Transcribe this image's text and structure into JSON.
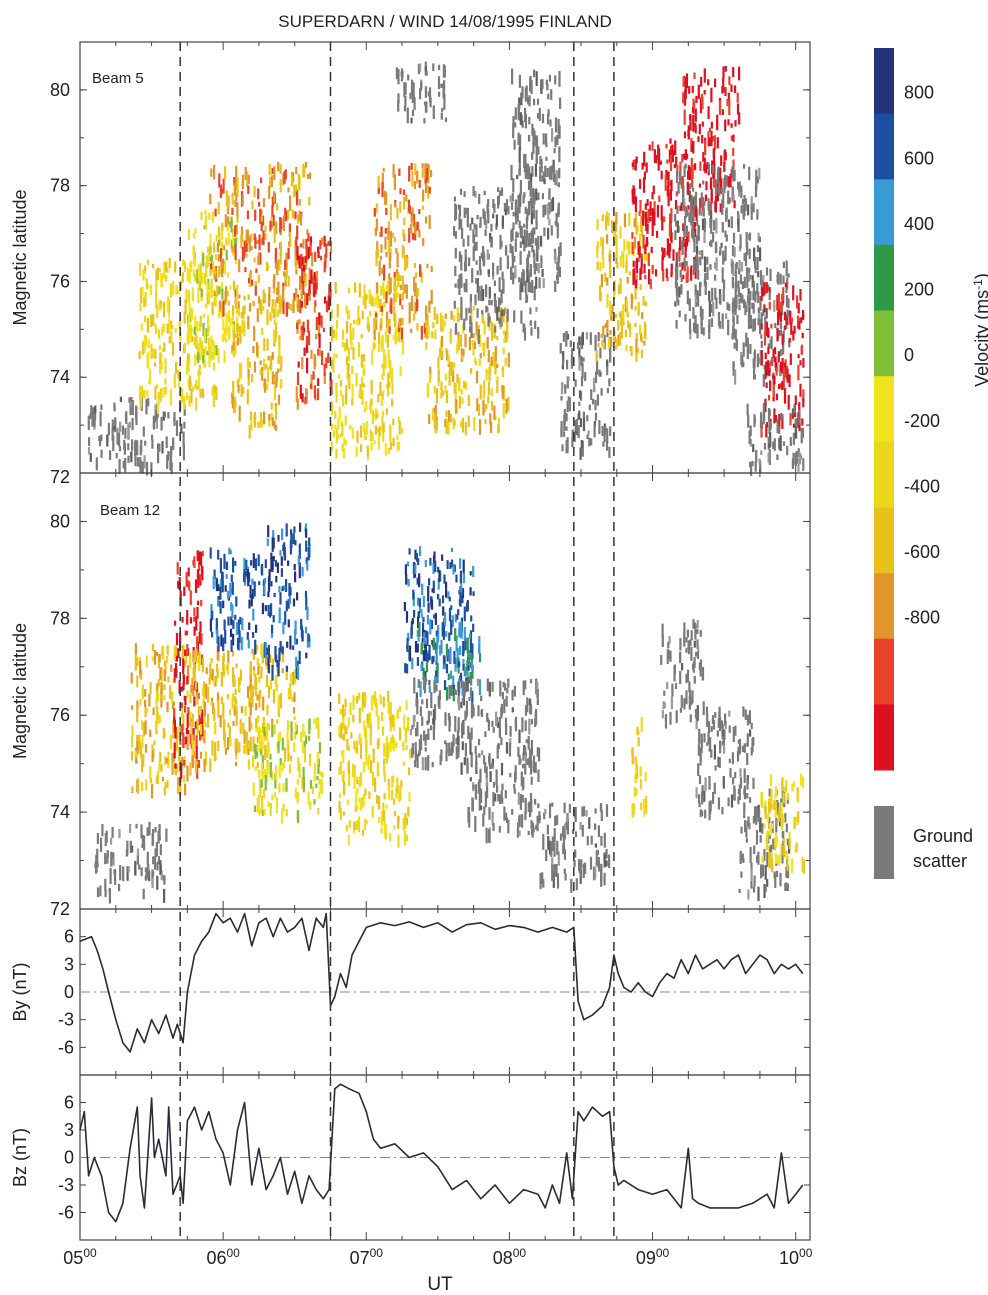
{
  "figure_title": "SUPERDARN / WIND 14/08/1995   FINLAND",
  "colors": {
    "velocity_scale": [
      "#dd1020",
      "#e8442a",
      "#e0962a",
      "#e8c21a",
      "#ecd81a",
      "#f2e21e",
      "#7fbf3a",
      "#2e9a45",
      "#3a9ad4",
      "#1e4ea0",
      "#25347a"
    ],
    "ground_scatter": "#7a7a7a",
    "line": "#2a2a3a",
    "dash": "#333333"
  },
  "chart_data": [
    {
      "type": "heatmap",
      "panel": "Beam 5",
      "ylabel": "Magnetic latitude",
      "ylim": [
        72,
        81
      ],
      "yticks": [
        "72",
        "74",
        "76",
        "78",
        "80"
      ],
      "echo_patches": [
        {
          "t": [
            5.05,
            5.75
          ],
          "lat": [
            72.2,
            73.6
          ],
          "class": "gs"
        },
        {
          "t": [
            5.4,
            5.95
          ],
          "lat": [
            73.5,
            76.5
          ],
          "class": 4
        },
        {
          "t": [
            5.75,
            6.1
          ],
          "lat": [
            74.5,
            77.5
          ],
          "class": 5
        },
        {
          "t": [
            5.9,
            6.6
          ],
          "lat": [
            75.5,
            78.5
          ],
          "class": 2
        },
        {
          "t": [
            6.05,
            6.4
          ],
          "lat": [
            73.0,
            76.0
          ],
          "class": 3
        },
        {
          "t": [
            6.5,
            6.75
          ],
          "lat": [
            73.5,
            77.0
          ],
          "class": 1
        },
        {
          "t": [
            6.75,
            7.25
          ],
          "lat": [
            72.5,
            76.0
          ],
          "class": 4
        },
        {
          "t": [
            7.05,
            7.45
          ],
          "lat": [
            75.0,
            78.5
          ],
          "class": 2
        },
        {
          "t": [
            7.2,
            7.55
          ],
          "lat": [
            79.4,
            80.6
          ],
          "class": "gs"
        },
        {
          "t": [
            7.4,
            8.0
          ],
          "lat": [
            73.0,
            75.5
          ],
          "class": 3
        },
        {
          "t": [
            7.6,
            8.2
          ],
          "lat": [
            75.0,
            78.0
          ],
          "class": "gs"
        },
        {
          "t": [
            8.0,
            8.35
          ],
          "lat": [
            76.0,
            80.5
          ],
          "class": "gs"
        },
        {
          "t": [
            8.35,
            8.7
          ],
          "lat": [
            72.5,
            75.0
          ],
          "class": "gs"
        },
        {
          "t": [
            8.6,
            8.95
          ],
          "lat": [
            74.5,
            77.5
          ],
          "class": 3
        },
        {
          "t": [
            8.85,
            9.3
          ],
          "lat": [
            76.0,
            79.0
          ],
          "class": 0
        },
        {
          "t": [
            9.2,
            9.6
          ],
          "lat": [
            77.5,
            80.5
          ],
          "class": 0
        },
        {
          "t": [
            9.15,
            9.75
          ],
          "lat": [
            75.0,
            78.5
          ],
          "class": "gs"
        },
        {
          "t": [
            9.55,
            9.95
          ],
          "lat": [
            74.0,
            76.5
          ],
          "class": "gs"
        },
        {
          "t": [
            9.75,
            10.05
          ],
          "lat": [
            73.0,
            76.0
          ],
          "class": 0
        },
        {
          "t": [
            9.65,
            10.05
          ],
          "lat": [
            72.2,
            73.5
          ],
          "class": "gs"
        }
      ]
    },
    {
      "type": "heatmap",
      "panel": "Beam 12",
      "ylabel": "Magnetic latitude",
      "ylim": [
        72,
        81
      ],
      "yticks": [
        "72",
        "74",
        "76",
        "78",
        "80"
      ],
      "echo_patches": [
        {
          "t": [
            5.1,
            5.6
          ],
          "lat": [
            72.4,
            73.8
          ],
          "class": "gs"
        },
        {
          "t": [
            5.35,
            5.75
          ],
          "lat": [
            74.5,
            77.5
          ],
          "class": 3
        },
        {
          "t": [
            5.65,
            5.85
          ],
          "lat": [
            75.0,
            79.5
          ],
          "class": 0
        },
        {
          "t": [
            5.75,
            6.5
          ],
          "lat": [
            75.0,
            77.5
          ],
          "class": 3
        },
        {
          "t": [
            5.9,
            6.3
          ],
          "lat": [
            77.5,
            79.5
          ],
          "class": 9
        },
        {
          "t": [
            6.3,
            6.6
          ],
          "lat": [
            77.0,
            80.0
          ],
          "class": 9
        },
        {
          "t": [
            6.2,
            6.7
          ],
          "lat": [
            74.0,
            76.0
          ],
          "class": 5
        },
        {
          "t": [
            6.8,
            7.3
          ],
          "lat": [
            73.5,
            76.5
          ],
          "class": 4
        },
        {
          "t": [
            7.25,
            7.75
          ],
          "lat": [
            77.0,
            79.5
          ],
          "class": 9
        },
        {
          "t": [
            7.35,
            7.8
          ],
          "lat": [
            76.5,
            78.0
          ],
          "class": 8
        },
        {
          "t": [
            7.3,
            8.2
          ],
          "lat": [
            75.0,
            76.8
          ],
          "class": "gs"
        },
        {
          "t": [
            7.7,
            8.2
          ],
          "lat": [
            73.6,
            75.2
          ],
          "class": "gs"
        },
        {
          "t": [
            8.2,
            8.7
          ],
          "lat": [
            72.6,
            74.2
          ],
          "class": "gs"
        },
        {
          "t": [
            8.85,
            8.95
          ],
          "lat": [
            74.0,
            76.0
          ],
          "class": 4
        },
        {
          "t": [
            9.05,
            9.35
          ],
          "lat": [
            76.0,
            78.0
          ],
          "class": "gs"
        },
        {
          "t": [
            9.3,
            9.7
          ],
          "lat": [
            74.0,
            76.2
          ],
          "class": "gs"
        },
        {
          "t": [
            9.6,
            9.95
          ],
          "lat": [
            72.4,
            74.5
          ],
          "class": "gs"
        },
        {
          "t": [
            9.75,
            10.05
          ],
          "lat": [
            73.0,
            74.8
          ],
          "class": 4
        }
      ]
    },
    {
      "type": "line",
      "panel": "By",
      "ylabel": "By (nT)",
      "ylim": [
        -9,
        9
      ],
      "yticks": [
        "6",
        "3",
        "0",
        "-3",
        "-6"
      ],
      "x": [
        5.0,
        5.08,
        5.12,
        5.16,
        5.2,
        5.25,
        5.3,
        5.35,
        5.4,
        5.45,
        5.5,
        5.55,
        5.6,
        5.65,
        5.68,
        5.72,
        5.75,
        5.8,
        5.85,
        5.9,
        5.95,
        6.0,
        6.05,
        6.1,
        6.15,
        6.2,
        6.25,
        6.3,
        6.35,
        6.4,
        6.45,
        6.5,
        6.55,
        6.6,
        6.65,
        6.7,
        6.72,
        6.75,
        6.78,
        6.82,
        6.86,
        6.9,
        6.95,
        7.0,
        7.1,
        7.2,
        7.3,
        7.4,
        7.5,
        7.6,
        7.7,
        7.8,
        7.9,
        8.0,
        8.1,
        8.2,
        8.3,
        8.4,
        8.45,
        8.48,
        8.52,
        8.58,
        8.65,
        8.7,
        8.73,
        8.76,
        8.8,
        8.85,
        8.9,
        8.95,
        9.0,
        9.05,
        9.1,
        9.15,
        9.2,
        9.25,
        9.3,
        9.35,
        9.4,
        9.45,
        9.5,
        9.55,
        9.6,
        9.65,
        9.7,
        9.75,
        9.8,
        9.85,
        9.9,
        9.95,
        10.0,
        10.05
      ],
      "y": [
        5.5,
        6.0,
        4.5,
        2.5,
        0.0,
        -3.0,
        -5.5,
        -6.5,
        -4.0,
        -5.5,
        -3.0,
        -4.5,
        -2.5,
        -5.0,
        -3.5,
        -5.5,
        0.0,
        4.0,
        5.5,
        6.5,
        8.5,
        7.5,
        8.0,
        6.5,
        8.5,
        5.0,
        7.5,
        8.0,
        6.0,
        8.0,
        6.5,
        7.0,
        8.0,
        4.5,
        8.0,
        7.0,
        8.5,
        -1.5,
        -0.5,
        2.0,
        0.5,
        4.0,
        5.5,
        7.0,
        7.5,
        7.2,
        7.6,
        7.0,
        7.5,
        6.5,
        7.3,
        7.5,
        6.8,
        7.2,
        7.0,
        6.5,
        7.0,
        6.5,
        7.0,
        -1.0,
        -3.0,
        -2.5,
        -1.5,
        0.5,
        4.0,
        2.0,
        0.5,
        0.0,
        1.0,
        0.0,
        -0.5,
        1.0,
        2.0,
        1.5,
        3.5,
        2.0,
        4.0,
        2.5,
        3.0,
        3.5,
        2.5,
        3.5,
        4.0,
        2.0,
        3.0,
        4.0,
        3.5,
        2.0,
        3.0,
        2.5,
        3.0,
        2.0
      ],
      "zero_line": "dash-dot"
    },
    {
      "type": "line",
      "panel": "Bz",
      "ylabel": "Bz (nT)",
      "ylim": [
        -9,
        9
      ],
      "yticks": [
        "6",
        "3",
        "0",
        "-3",
        "-6"
      ],
      "x": [
        5.0,
        5.03,
        5.06,
        5.1,
        5.15,
        5.2,
        5.25,
        5.3,
        5.35,
        5.4,
        5.42,
        5.45,
        5.5,
        5.52,
        5.55,
        5.6,
        5.62,
        5.65,
        5.7,
        5.72,
        5.75,
        5.8,
        5.85,
        5.9,
        5.95,
        6.0,
        6.05,
        6.1,
        6.15,
        6.2,
        6.25,
        6.3,
        6.35,
        6.4,
        6.45,
        6.5,
        6.55,
        6.6,
        6.65,
        6.7,
        6.74,
        6.78,
        6.82,
        6.88,
        6.95,
        7.0,
        7.05,
        7.1,
        7.2,
        7.3,
        7.4,
        7.5,
        7.6,
        7.7,
        7.8,
        7.9,
        8.0,
        8.1,
        8.2,
        8.25,
        8.3,
        8.35,
        8.4,
        8.44,
        8.48,
        8.52,
        8.58,
        8.65,
        8.7,
        8.73,
        8.76,
        8.8,
        8.9,
        9.0,
        9.1,
        9.2,
        9.25,
        9.28,
        9.32,
        9.4,
        9.5,
        9.6,
        9.7,
        9.8,
        9.85,
        9.9,
        9.95,
        10.0,
        10.05
      ],
      "y": [
        3.0,
        5.0,
        -2.0,
        0.0,
        -2.0,
        -6.0,
        -7.0,
        -5.0,
        1.0,
        5.5,
        -2.0,
        -5.5,
        6.5,
        0.0,
        2.0,
        -2.0,
        5.5,
        -4.0,
        -2.0,
        -5.0,
        4.0,
        5.5,
        3.0,
        5.0,
        2.0,
        0.5,
        -3.0,
        3.0,
        6.0,
        -3.0,
        1.0,
        -3.5,
        -2.0,
        0.0,
        -4.0,
        -1.5,
        -5.0,
        -2.0,
        -3.5,
        -4.5,
        -3.5,
        7.5,
        8.0,
        7.5,
        7.0,
        5.0,
        2.0,
        1.0,
        1.5,
        0.0,
        0.5,
        -1.0,
        -3.5,
        -2.5,
        -4.5,
        -3.0,
        -5.0,
        -3.5,
        -4.0,
        -5.5,
        -3.0,
        -5.0,
        0.5,
        -4.5,
        5.0,
        4.0,
        5.5,
        4.5,
        5.0,
        -1.0,
        -3.0,
        -2.5,
        -3.5,
        -4.0,
        -3.5,
        -5.5,
        1.0,
        -4.5,
        -5.0,
        -5.5,
        -5.5,
        -5.5,
        -5.0,
        -4.0,
        -5.5,
        0.5,
        -5.0,
        -4.0,
        -3.0
      ],
      "zero_line": "dash-dot"
    }
  ],
  "beam5_label": "Beam 5",
  "beam12_label": "Beam 12",
  "x_axis": {
    "label": "UT",
    "xlim": [
      5.0,
      10.1
    ],
    "tick_values": [
      5,
      6,
      7,
      8,
      9,
      10
    ],
    "tick_labels": [
      {
        "base": "05",
        "sup": "00"
      },
      {
        "base": "06",
        "sup": "00"
      },
      {
        "base": "07",
        "sup": "00"
      },
      {
        "base": "08",
        "sup": "00"
      },
      {
        "base": "09",
        "sup": "00"
      },
      {
        "base": "10",
        "sup": "00"
      }
    ]
  },
  "event_lines_ut": [
    5.7,
    6.75,
    8.45,
    8.73
  ],
  "colorbar": {
    "title": "Velocity (ms",
    "title_sup": "-1",
    "title_close": ")",
    "tick_labels": [
      "800",
      "600",
      "400",
      "200",
      "0",
      "-200",
      "-400",
      "-600",
      "-800"
    ]
  },
  "ground_scatter_legend": {
    "line1": "Ground",
    "line2": "scatter"
  }
}
